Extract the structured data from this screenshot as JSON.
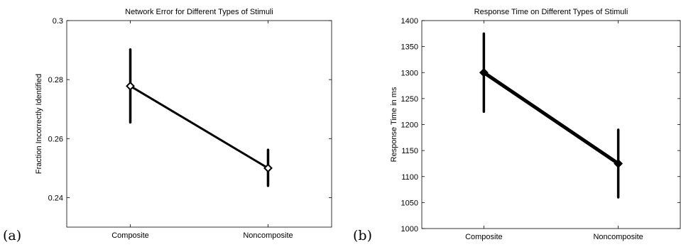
{
  "chart_data": [
    {
      "type": "line",
      "panel_label": "(a)",
      "title": "Network Error for Different Types of Stimuli",
      "xlabel": "",
      "ylabel": "Fraction Incorrectly Identified",
      "categories": [
        "Composite",
        "Noncomposite"
      ],
      "values": [
        0.2778,
        0.25
      ],
      "error_low": [
        0.2655,
        0.244
      ],
      "error_high": [
        0.2902,
        0.2562
      ],
      "ylim": [
        0.23,
        0.3
      ],
      "yticks": [
        0.24,
        0.26,
        0.28,
        0.3
      ],
      "ytick_labels": [
        "0.24",
        "0.26",
        "0.28",
        "0.3"
      ],
      "grid": false,
      "line_color": "#000000"
    },
    {
      "type": "line",
      "panel_label": "(b)",
      "title": "Response Time on Different Types of Stimuli",
      "xlabel": "",
      "ylabel": "Response Time in ms",
      "categories": [
        "Composite",
        "Noncomposite"
      ],
      "values": [
        1300,
        1125
      ],
      "error_low": [
        1225,
        1060
      ],
      "error_high": [
        1375,
        1190
      ],
      "ylim": [
        1000,
        1400
      ],
      "yticks": [
        1000,
        1050,
        1100,
        1150,
        1200,
        1250,
        1300,
        1350,
        1400
      ],
      "ytick_labels": [
        "1000",
        "1050",
        "1100",
        "1150",
        "1200",
        "1250",
        "1300",
        "1350",
        "1400"
      ],
      "grid": false,
      "line_color": "#000000"
    }
  ]
}
